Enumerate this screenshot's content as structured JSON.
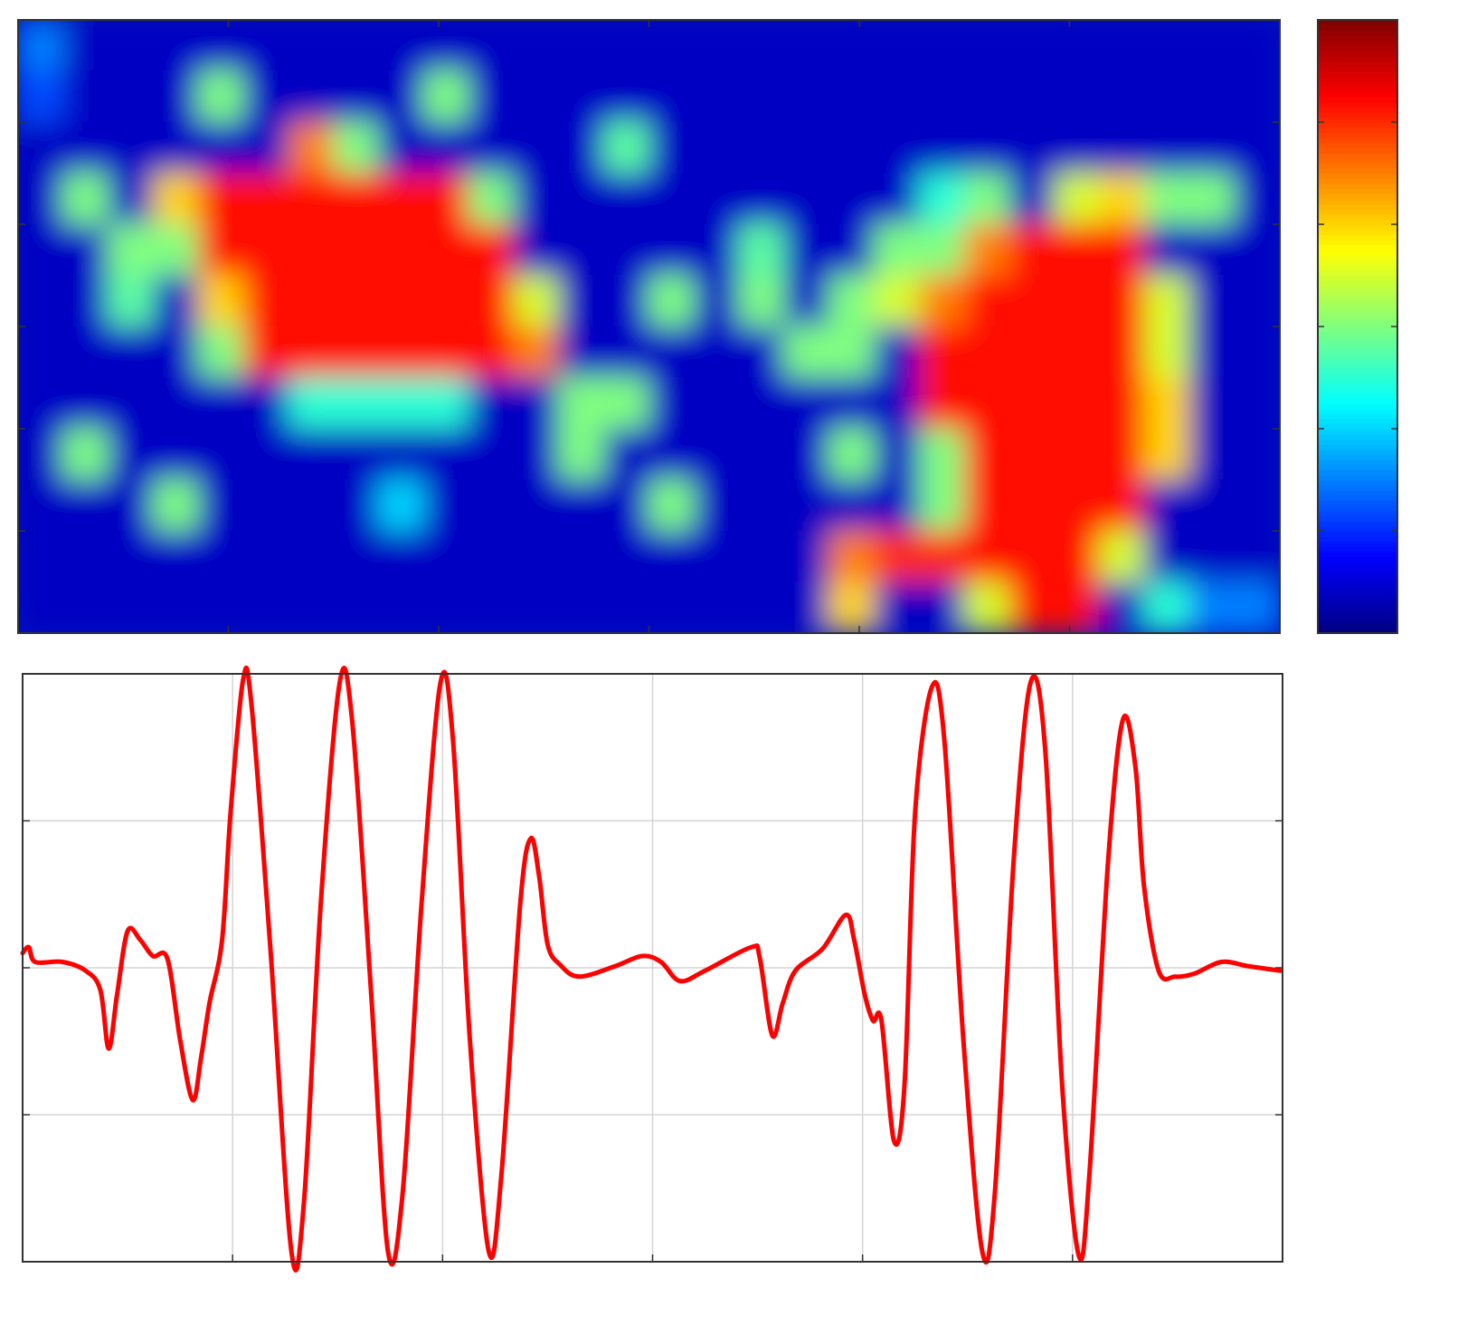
{
  "chart_data": [
    {
      "type": "heatmap",
      "colormap": "jet",
      "zlim": [
        0,
        6
      ],
      "zticks": [
        1,
        2,
        3,
        4,
        5
      ],
      "xlim": [
        0,
        6
      ],
      "xticks": [
        1,
        2,
        3,
        4,
        5
      ],
      "ylim": [
        0,
        6
      ],
      "yticks": [
        1,
        2,
        3,
        4,
        5
      ],
      "z": [
        [
          1.5,
          0.4,
          0.4,
          0.4,
          0.4,
          0.4,
          0.4,
          0.4,
          0.4,
          0.4,
          0.4,
          0.4,
          0.4,
          0.4,
          0.4,
          0.4,
          0.4,
          0.4,
          0.4,
          0.4,
          0.4,
          0.4,
          0.4,
          0.4,
          0.4,
          0.4,
          0.4,
          0.4
        ],
        [
          1.2,
          0.4,
          0.4,
          0.4,
          3,
          0.4,
          0.4,
          0.4,
          0.4,
          3,
          0.4,
          0.4,
          0.4,
          0.4,
          0.4,
          0.4,
          0.4,
          0.4,
          0.4,
          0.4,
          0.4,
          0.4,
          0.4,
          0.4,
          0.4,
          0.4,
          0.4,
          0.4
        ],
        [
          0.4,
          0.4,
          0.4,
          0.4,
          0.4,
          0.4,
          4.5,
          3,
          0.4,
          0.4,
          0.4,
          0.4,
          0.4,
          2.8,
          0.4,
          0.4,
          0.4,
          0.4,
          0.4,
          0.4,
          0.4,
          0.4,
          0.4,
          0.4,
          0.4,
          0.4,
          0.4,
          0.4
        ],
        [
          0.4,
          3,
          0.4,
          4,
          5.2,
          5.2,
          5.2,
          5.2,
          5.2,
          5.2,
          3,
          0.4,
          0.4,
          0.4,
          0.4,
          0.4,
          0.4,
          0.4,
          0.4,
          0.4,
          2.5,
          3,
          0.4,
          3.5,
          4,
          3,
          3,
          0.4
        ],
        [
          0.4,
          0.4,
          3,
          3,
          5.2,
          5.2,
          5.2,
          5.2,
          5.2,
          5.2,
          5.2,
          0.4,
          0.4,
          0.4,
          0.4,
          0.4,
          2.8,
          0.4,
          0.4,
          3,
          3,
          4.5,
          5.2,
          5.2,
          5.2,
          0.4,
          0.4,
          0.4
        ],
        [
          0.4,
          0.4,
          2.8,
          0.4,
          4,
          5.2,
          5.2,
          5.2,
          5.2,
          5.2,
          5.2,
          3.5,
          0.4,
          0.4,
          3,
          0.4,
          3,
          0.4,
          3,
          3.5,
          4.5,
          5.2,
          5.2,
          5.2,
          5.2,
          3.5,
          0.4,
          0.4
        ],
        [
          0.4,
          0.4,
          0.4,
          0.4,
          3,
          5.2,
          5.2,
          5.2,
          5.2,
          5.2,
          5.2,
          4.5,
          0.4,
          0.4,
          0.4,
          0.4,
          0.4,
          3,
          3,
          0.4,
          5.2,
          5.2,
          5.2,
          5.2,
          5.2,
          3.5,
          0.4,
          0.4
        ],
        [
          0.4,
          0.4,
          0.4,
          0.4,
          0.4,
          0.4,
          2.5,
          2.5,
          2.5,
          2.5,
          0.4,
          0.4,
          3,
          3,
          0.4,
          0.4,
          0.4,
          0.4,
          0.4,
          0.4,
          5.2,
          5.2,
          5.2,
          5.2,
          5.2,
          4,
          0.4,
          0.4
        ],
        [
          0.4,
          3,
          0.4,
          0.4,
          0.4,
          0.4,
          0.4,
          0.4,
          0.4,
          0.4,
          0.4,
          0.4,
          3,
          0.4,
          0.4,
          0.4,
          0.4,
          0.4,
          3,
          0.4,
          3,
          5.2,
          5.2,
          5.2,
          5.2,
          4,
          0.4,
          0.4
        ],
        [
          0.4,
          0.4,
          0.4,
          3,
          0.4,
          0.4,
          0.4,
          0.4,
          2,
          0.4,
          0.4,
          0.4,
          0.4,
          0.4,
          3,
          0.4,
          0.4,
          0.4,
          0.4,
          0.4,
          3,
          5.2,
          5.2,
          5.2,
          5.2,
          0.4,
          0.4,
          0.4
        ],
        [
          0.4,
          0.4,
          0.4,
          0.4,
          0.4,
          0.4,
          0.4,
          0.4,
          0.4,
          0.4,
          0.4,
          0.4,
          0.4,
          0.4,
          0.4,
          0.4,
          0.4,
          0.4,
          4.5,
          5,
          5,
          5.2,
          5.2,
          5.2,
          3.5,
          0.4,
          0.4,
          0.4
        ],
        [
          0.4,
          0.4,
          0.4,
          0.4,
          0.4,
          0.4,
          0.4,
          0.4,
          0.4,
          0.4,
          0.4,
          0.4,
          0.4,
          0.4,
          0.4,
          0.4,
          0.4,
          0.4,
          4,
          0.4,
          0.4,
          3.5,
          5.2,
          5.2,
          0.4,
          2.5,
          1.5,
          1.5
        ]
      ]
    },
    {
      "type": "line",
      "xlim": [
        0,
        6
      ],
      "xticks": [
        0,
        1,
        2,
        3,
        4,
        5,
        6
      ],
      "ylim": [
        -2,
        2
      ],
      "yticks": [
        -2,
        -1,
        0,
        1,
        2
      ],
      "grid": true,
      "x": [
        0,
        0.03,
        0.06,
        0.19,
        0.3,
        0.37,
        0.41,
        0.45,
        0.5,
        0.56,
        0.62,
        0.69,
        0.75,
        0.81,
        0.85,
        0.89,
        0.95,
        0.99,
        1.05,
        1.09,
        1.18,
        1.28,
        1.34,
        1.42,
        1.51,
        1.57,
        1.66,
        1.74,
        1.81,
        1.9,
        1.99,
        2.05,
        2.13,
        2.22,
        2.28,
        2.37,
        2.42,
        2.46,
        2.5,
        2.56,
        2.65,
        2.82,
        2.95,
        3.04,
        3.13,
        3.25,
        3.47,
        3.51,
        3.57,
        3.62,
        3.68,
        3.81,
        3.92,
        3.96,
        4.01,
        4.05,
        4.09,
        4.15,
        4.2,
        4.25,
        4.33,
        4.39,
        4.48,
        4.57,
        4.63,
        4.72,
        4.8,
        4.87,
        4.95,
        5.03,
        5.08,
        5.17,
        5.24,
        5.3,
        5.34,
        5.41,
        5.49,
        5.58,
        5.71,
        5.84,
        5.99
      ],
      "series": [
        {
          "color": "#ff0000",
          "values": [
            0.1,
            0.14,
            0.04,
            0.04,
            -0.02,
            -0.15,
            -0.55,
            -0.18,
            0.25,
            0.19,
            0.08,
            0.06,
            -0.49,
            -0.9,
            -0.61,
            -0.24,
            0.19,
            1.05,
            1.96,
            1.79,
            0.13,
            -1.93,
            -1.59,
            0.44,
            1.94,
            1.67,
            -0.18,
            -1.93,
            -1.53,
            0.44,
            1.94,
            1.54,
            -0.49,
            -1.93,
            -1.41,
            0.44,
            0.88,
            0.62,
            0.16,
            0.02,
            -0.06,
            0.01,
            0.08,
            0.04,
            -0.09,
            -0.02,
            0.14,
            0.07,
            -0.46,
            -0.24,
            -0.02,
            0.13,
            0.36,
            0.19,
            -0.18,
            -0.36,
            -0.36,
            -1.18,
            -0.79,
            1.05,
            1.91,
            1.54,
            -0.49,
            -1.93,
            -1.53,
            0.74,
            1.94,
            1.48,
            -0.79,
            -1.96,
            -1.41,
            0.74,
            1.69,
            1.36,
            0.56,
            -0.02,
            -0.06,
            -0.04,
            0.04,
            0.01,
            -0.02
          ]
        }
      ]
    }
  ]
}
